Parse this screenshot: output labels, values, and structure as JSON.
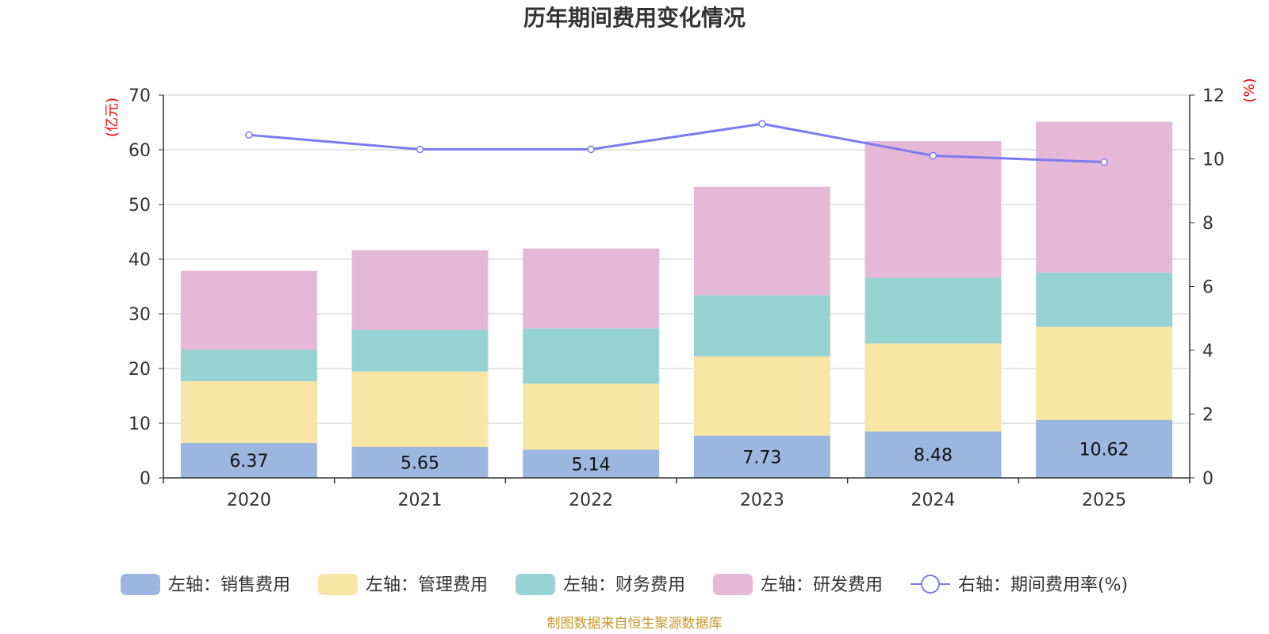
{
  "chart_data": {
    "type": "bar",
    "stacked": true,
    "title": "历年期间费用变化情况",
    "categories": [
      "2020",
      "2021",
      "2022",
      "2023",
      "2024",
      "2025"
    ],
    "left_axis": {
      "unit": "(亿元)",
      "range": [
        0,
        70
      ],
      "ticks": [
        0,
        10,
        20,
        30,
        40,
        50,
        60,
        70
      ]
    },
    "right_axis": {
      "unit": "(%)",
      "range": [
        0,
        12
      ],
      "ticks": [
        0,
        2,
        4,
        6,
        8,
        10,
        12
      ]
    },
    "series": [
      {
        "name": "左轴：销售费用",
        "type": "bar",
        "axis": "left",
        "color": "#9bb7e0",
        "values": [
          6.37,
          5.65,
          5.14,
          7.73,
          8.48,
          10.62
        ],
        "show_labels": true
      },
      {
        "name": "左轴：管理费用",
        "type": "bar",
        "axis": "left",
        "color": "#f7e6a6",
        "values": [
          11.3,
          13.8,
          12.1,
          14.5,
          16.1,
          17.0
        ]
      },
      {
        "name": "左轴：财务费用",
        "type": "bar",
        "axis": "left",
        "color": "#98d3d3",
        "values": [
          5.8,
          7.6,
          10.1,
          11.2,
          12.0,
          9.9
        ]
      },
      {
        "name": "左轴：研发费用",
        "type": "bar",
        "axis": "left",
        "color": "#e6b8d8",
        "values": [
          14.4,
          14.6,
          14.6,
          19.8,
          25.0,
          27.6
        ]
      },
      {
        "name": "右轴：期间费用率(%)",
        "type": "line",
        "axis": "right",
        "color": "#7b7bef",
        "values": [
          10.75,
          10.3,
          10.3,
          11.1,
          10.1,
          9.9
        ]
      }
    ],
    "grid": true,
    "legend_position": "bottom"
  },
  "source": "制图数据来自恒生聚源数据库"
}
